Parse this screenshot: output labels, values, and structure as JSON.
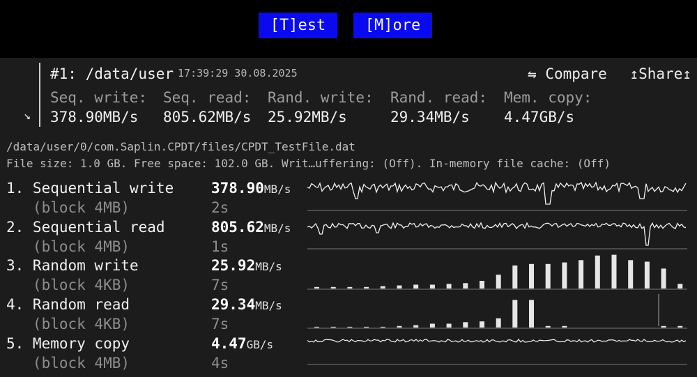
{
  "menu": {
    "test_label": "[T]est",
    "more_label": "[M]ore"
  },
  "summary": {
    "title": "#1: /data/user",
    "timestamp": "17:39:29 30.08.2025",
    "compare_label": "⇋ Compare",
    "share_label": "↥Share↥",
    "expand_icon": "↘",
    "metrics": [
      {
        "label": "Seq. write:",
        "value": "378.90MB/s"
      },
      {
        "label": "Seq. read:",
        "value": "805.62MB/s"
      },
      {
        "label": "Rand. write:",
        "value": "25.92MB/s"
      },
      {
        "label": "Rand. read:",
        "value": "29.34MB/s"
      },
      {
        "label": "Mem. copy:",
        "value": "4.47GB/s"
      }
    ]
  },
  "info": {
    "path": "/data/user/0/com.Saplin.CPDT/files/CPDT_TestFile.dat",
    "details": "File size: 1.0 GB. Free space: 102.0 GB. Writ…uffering: (Off). In-memory file cache: (Off)"
  },
  "tests": [
    {
      "name": "1. Sequential write",
      "block": "   (block 4MB)",
      "speed": "378.90",
      "unit": "MB/s",
      "time": "2s"
    },
    {
      "name": "2. Sequential read",
      "block": "   (block 4MB)",
      "speed": "805.62",
      "unit": "MB/s",
      "time": "1s"
    },
    {
      "name": "3. Random write",
      "block": "   (block 4KB)",
      "speed": "25.92",
      "unit": "MB/s",
      "time": "7s"
    },
    {
      "name": "4. Random read",
      "block": "   (block 4KB)",
      "speed": "29.34",
      "unit": "MB/s",
      "time": "7s"
    },
    {
      "name": "5. Memory copy",
      "block": "   (block 4MB)",
      "speed": "4.47",
      "unit": "GB/s",
      "time": "4s"
    }
  ],
  "graphs": {
    "random_write_bars": [
      0.02,
      0.02,
      0.02,
      0.02,
      0.03,
      0.04,
      0.05,
      0.05,
      0.06,
      0.07,
      0.1,
      0.18,
      0.3,
      0.32,
      0.32,
      0.34,
      0.37,
      0.43,
      0.44,
      0.37,
      0.35,
      0.26,
      0.06
    ],
    "random_read_bars": [
      0.01,
      0.01,
      0.01,
      0.01,
      0.01,
      0.02,
      0.03,
      0.05,
      0.05,
      0.07,
      0.08,
      0.12,
      0.36,
      0.36,
      0.02,
      0.02,
      0.0,
      0.0,
      0.0,
      0.0,
      0.0,
      0.02,
      0.02
    ]
  }
}
